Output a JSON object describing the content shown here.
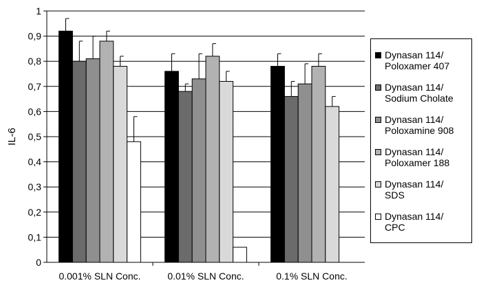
{
  "chart_data": {
    "type": "bar",
    "ylabel": "IL-6",
    "ylim": [
      0,
      1
    ],
    "yticks": [
      "0",
      "0,1",
      "0,2",
      "0,3",
      "0,4",
      "0,5",
      "0,6",
      "0,7",
      "0,8",
      "0,9",
      "1"
    ],
    "grid": true,
    "legend_position": "right",
    "categories": [
      "0.001% SLN Conc.",
      "0.01% SLN Conc.",
      "0.1% SLN Conc."
    ],
    "series": [
      {
        "name_line1": "Dynasan 114/",
        "name_line2": "Poloxamer 407",
        "color": "#000000",
        "values": [
          0.92,
          0.76,
          0.78
        ],
        "errors": [
          0.05,
          0.07,
          0.05
        ]
      },
      {
        "name_line1": "Dynasan 114/",
        "name_line2": "Sodium Cholate",
        "color": "#6b6b6b",
        "values": [
          0.8,
          0.68,
          0.66
        ],
        "errors": [
          0.08,
          0.03,
          0.06
        ]
      },
      {
        "name_line1": "Dynasan 114/",
        "name_line2": "Poloxamine 908",
        "color": "#8f8f8f",
        "values": [
          0.81,
          0.73,
          0.71
        ],
        "errors": [
          0.09,
          0.1,
          0.08
        ]
      },
      {
        "name_line1": "Dynasan 114/",
        "name_line2": "Poloxamer 188",
        "color": "#b2b2b2",
        "values": [
          0.88,
          0.82,
          0.78
        ],
        "errors": [
          0.04,
          0.05,
          0.05
        ]
      },
      {
        "name_line1": "Dynasan 114/",
        "name_line2": "SDS",
        "color": "#d9d9d9",
        "values": [
          0.78,
          0.72,
          0.62
        ],
        "errors": [
          0.04,
          0.04,
          0.04
        ]
      },
      {
        "name_line1": "Dynasan 114/",
        "name_line2": "CPC",
        "color": "#ffffff",
        "values": [
          0.48,
          0.06,
          0.0
        ],
        "errors": [
          0.1,
          0.0,
          0.0
        ]
      }
    ]
  }
}
